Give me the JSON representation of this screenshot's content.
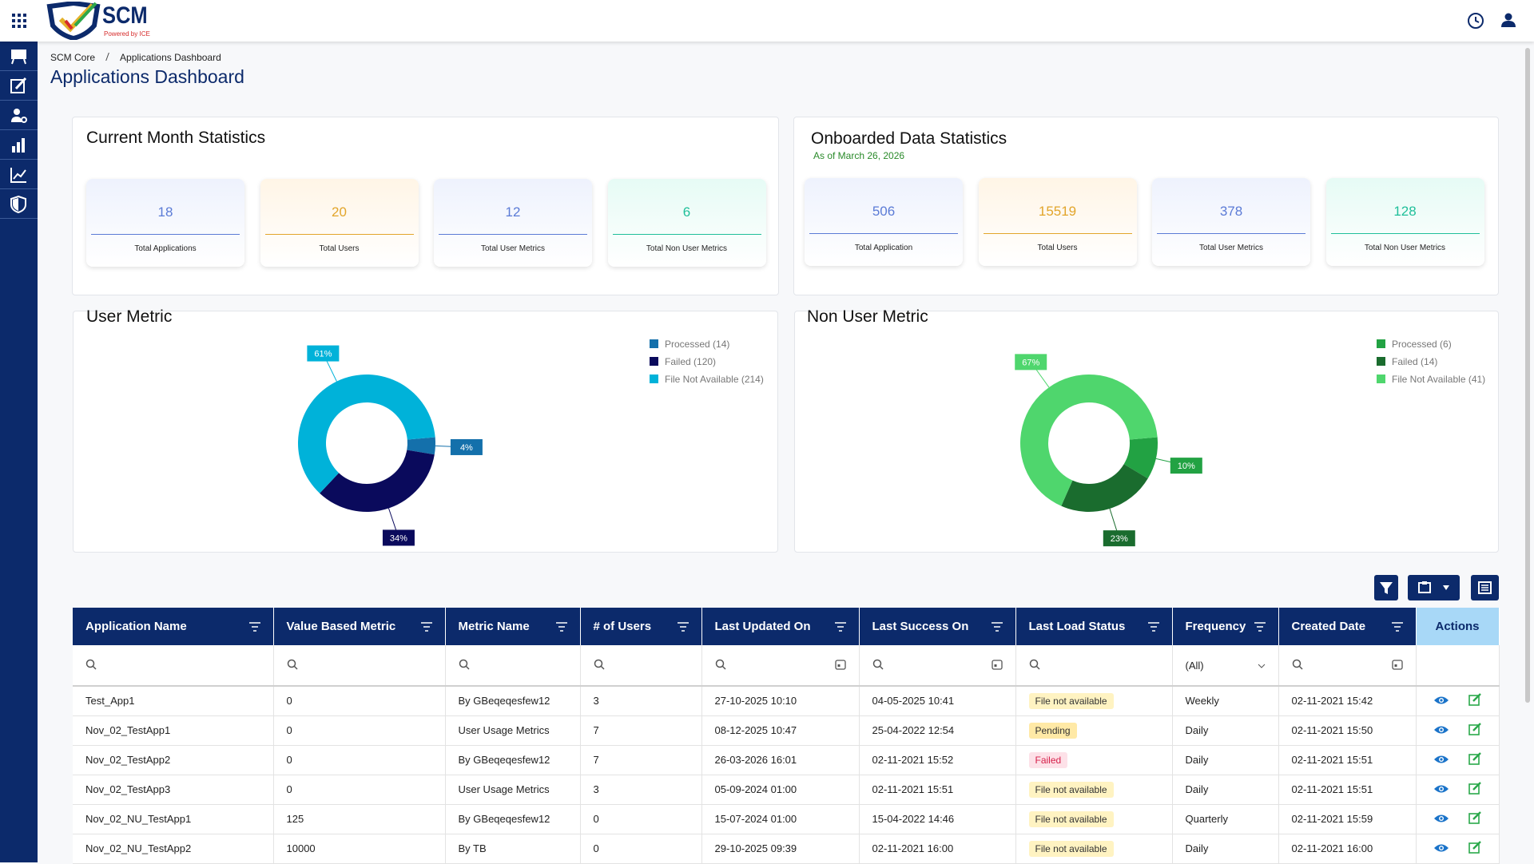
{
  "header": {
    "logo_text": "SCM",
    "logo_subtitle": "Powered by ICE"
  },
  "breadcrumb": [
    "SCM Core",
    "Applications Dashboard"
  ],
  "title": "Applications Dashboard",
  "current_month": {
    "title": "Current Month Statistics",
    "stats": [
      {
        "value": 18,
        "label": "Total Applications",
        "color": "#5b7bd6",
        "bg": "#eef2fd"
      },
      {
        "value": 20,
        "label": "Total Users",
        "color": "#e2a52a",
        "bg": "#fff5e6"
      },
      {
        "value": 12,
        "label": "Total User Metrics",
        "color": "#5b7bd6",
        "bg": "#eef2fd"
      },
      {
        "value": 6,
        "label": "Total Non User Metrics",
        "color": "#1fbf9a",
        "bg": "#e6fbf5"
      }
    ]
  },
  "onboarded": {
    "title": "Onboarded Data Statistics",
    "subtitle": "As of March 26, 2026",
    "stats": [
      {
        "value": 506,
        "label": "Total Application",
        "color": "#5b7bd6",
        "bg": "#eef2fd"
      },
      {
        "value": 15519,
        "label": "Total Users",
        "color": "#e2a52a",
        "bg": "#fff5e6"
      },
      {
        "value": 378,
        "label": "Total User Metrics",
        "color": "#5b7bd6",
        "bg": "#eef2fd"
      },
      {
        "value": 128,
        "label": "Total Non User Metrics",
        "color": "#1fbf9a",
        "bg": "#e6fbf5"
      }
    ]
  },
  "chart_data": [
    {
      "type": "donut",
      "title": "User Metric",
      "categories": [
        "Processed (14)",
        "Failed (120)",
        "File Not Available (214)"
      ],
      "values": [
        4,
        34,
        61
      ],
      "value_labels": [
        "4%",
        "34%",
        "61%"
      ],
      "colors": [
        "#1470ab",
        "#0a0a5c",
        "#00b2d9"
      ]
    },
    {
      "type": "donut",
      "title": "Non User Metric",
      "categories": [
        "Processed (6)",
        "Failed (14)",
        "File Not Available (41)"
      ],
      "values": [
        10,
        23,
        67
      ],
      "value_labels": [
        "10%",
        "23%",
        "67%"
      ],
      "colors": [
        "#22a243",
        "#1a6c2e",
        "#4fd66d"
      ]
    }
  ],
  "table": {
    "columns": [
      "Application Name",
      "Value Based Metric",
      "Metric Name",
      "# of Users",
      "Last Updated On",
      "Last Success On",
      "Last Load Status",
      "Frequency",
      "Created Date",
      "Actions"
    ],
    "frequency_filter": "(All)",
    "rows": [
      [
        "Test_App1",
        "0",
        "By GBeqeqesfew12",
        "3",
        "27-10-2025 10:10",
        "04-05-2025 10:41",
        "File not available",
        "Weekly",
        "02-11-2021 15:42"
      ],
      [
        "Nov_02_TestApp1",
        "0",
        "User Usage Metrics",
        "7",
        "08-12-2025 10:47",
        "25-04-2022 12:54",
        "Pending",
        "Daily",
        "02-11-2021 15:50"
      ],
      [
        "Nov_02_TestApp2",
        "0",
        "By GBeqeqesfew12",
        "7",
        "26-03-2026 16:01",
        "02-11-2021 15:52",
        "Failed",
        "Daily",
        "02-11-2021 15:51"
      ],
      [
        "Nov_02_TestApp3",
        "0",
        "User Usage Metrics",
        "3",
        "05-09-2024 01:00",
        "02-11-2021 15:51",
        "File not available",
        "Daily",
        "02-11-2021 15:51"
      ],
      [
        "Nov_02_NU_TestApp1",
        "125",
        "By GBeqeqesfew12",
        "0",
        "15-07-2024 01:00",
        "15-04-2022 14:46",
        "File not available",
        "Quarterly",
        "02-11-2021 15:59"
      ],
      [
        "Nov_02_NU_TestApp2",
        "10000",
        "By TB",
        "0",
        "29-10-2025 09:39",
        "02-11-2021 16:00",
        "File not available",
        "Daily",
        "02-11-2021 16:00"
      ]
    ],
    "status_colors": [
      {
        "bg": "#fff3c2",
        "fg": "#333333"
      },
      {
        "bg": "#ffe9a6",
        "fg": "#333333"
      },
      {
        "bg": "#fde1e8",
        "fg": "#d6204a"
      },
      {
        "bg": "#fff3c2",
        "fg": "#333333"
      },
      {
        "bg": "#fff3c2",
        "fg": "#333333"
      },
      {
        "bg": "#fff3c2",
        "fg": "#333333"
      }
    ]
  }
}
